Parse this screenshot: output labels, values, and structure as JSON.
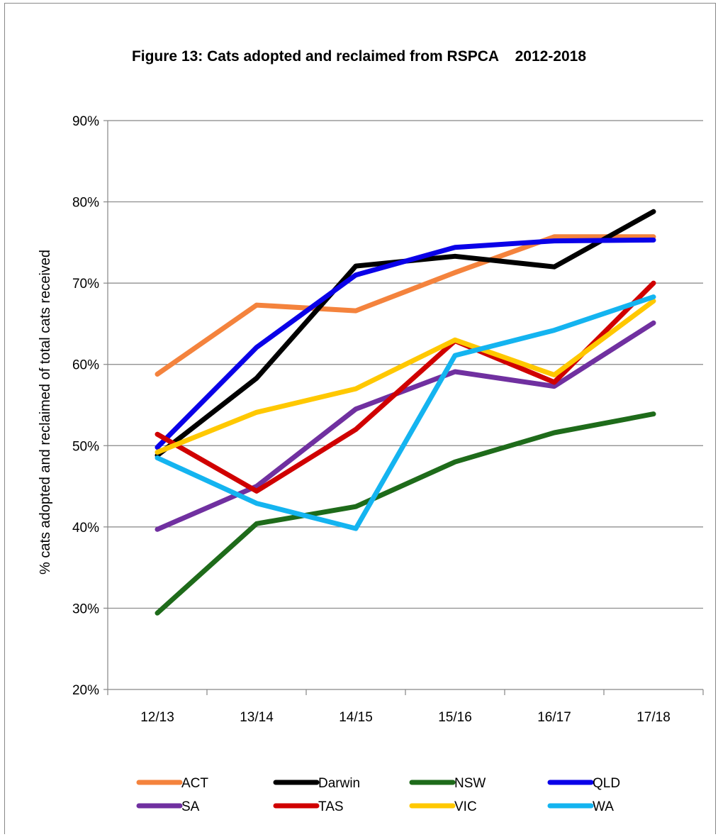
{
  "chart_data": {
    "type": "line",
    "title": "Figure 13: Cats adopted and reclaimed from RSPCA    2012-2018",
    "xlabel": "",
    "ylabel": "% cats adopted and reclaimed of total cats received",
    "categories": [
      "12/13",
      "13/14",
      "14/15",
      "15/16",
      "16/17",
      "17/18"
    ],
    "ylim": [
      20,
      90
    ],
    "yticks": [
      "20%",
      "30%",
      "40%",
      "50%",
      "60%",
      "70%",
      "80%",
      "90%"
    ],
    "grid": "horizontal",
    "legend_position": "bottom",
    "series": [
      {
        "name": "ACT",
        "color": "#F4833D",
        "values": [
          58.8,
          67.3,
          66.6,
          71.3,
          75.7,
          75.7
        ]
      },
      {
        "name": "Darwin",
        "color": "#000000",
        "values": [
          48.8,
          58.3,
          72.1,
          73.3,
          72.0,
          78.8
        ]
      },
      {
        "name": "NSW",
        "color": "#1E6B1A",
        "values": [
          29.4,
          40.4,
          42.5,
          48.0,
          51.6,
          53.9
        ]
      },
      {
        "name": "QLD",
        "color": "#0A00E8",
        "values": [
          49.8,
          62.1,
          71.0,
          74.4,
          75.2,
          75.3
        ]
      },
      {
        "name": "SA",
        "color": "#7030A0",
        "values": [
          39.7,
          45.0,
          54.5,
          59.1,
          57.3,
          65.1
        ]
      },
      {
        "name": "TAS",
        "color": "#D00000",
        "values": [
          51.4,
          44.4,
          52.0,
          62.9,
          57.8,
          70.0
        ]
      },
      {
        "name": "VIC",
        "color": "#FFC800",
        "values": [
          49.2,
          54.1,
          57.0,
          63.0,
          58.7,
          67.8
        ]
      },
      {
        "name": "WA",
        "color": "#14B4F0",
        "values": [
          48.5,
          42.9,
          39.8,
          61.1,
          64.2,
          68.3
        ]
      }
    ]
  }
}
